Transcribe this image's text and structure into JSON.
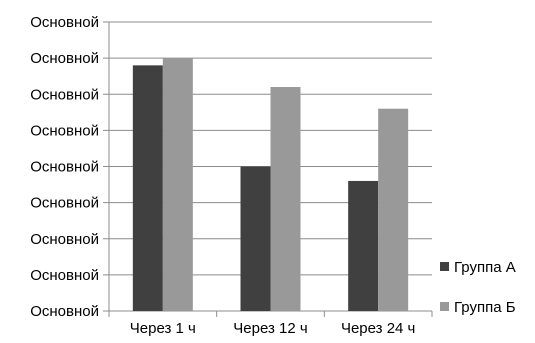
{
  "chart_data": {
    "type": "bar",
    "categories": [
      "Через 1 ч",
      "Через 12 ч",
      "Через 24 ч"
    ],
    "y_tick_labels": [
      "Основной",
      "Основной",
      "Основной",
      "Основной",
      "Основной",
      "Основной",
      "Основной",
      "Основной",
      "Основной"
    ],
    "ylim": [
      0,
      8
    ],
    "series": [
      {
        "name": "Группа А",
        "values": [
          6.8,
          4.0,
          3.6
        ],
        "color": "#404040"
      },
      {
        "name": "Группа Б",
        "values": [
          7.0,
          6.2,
          5.6
        ],
        "color": "#999999"
      }
    ],
    "grid": true,
    "legend_position": "right"
  }
}
